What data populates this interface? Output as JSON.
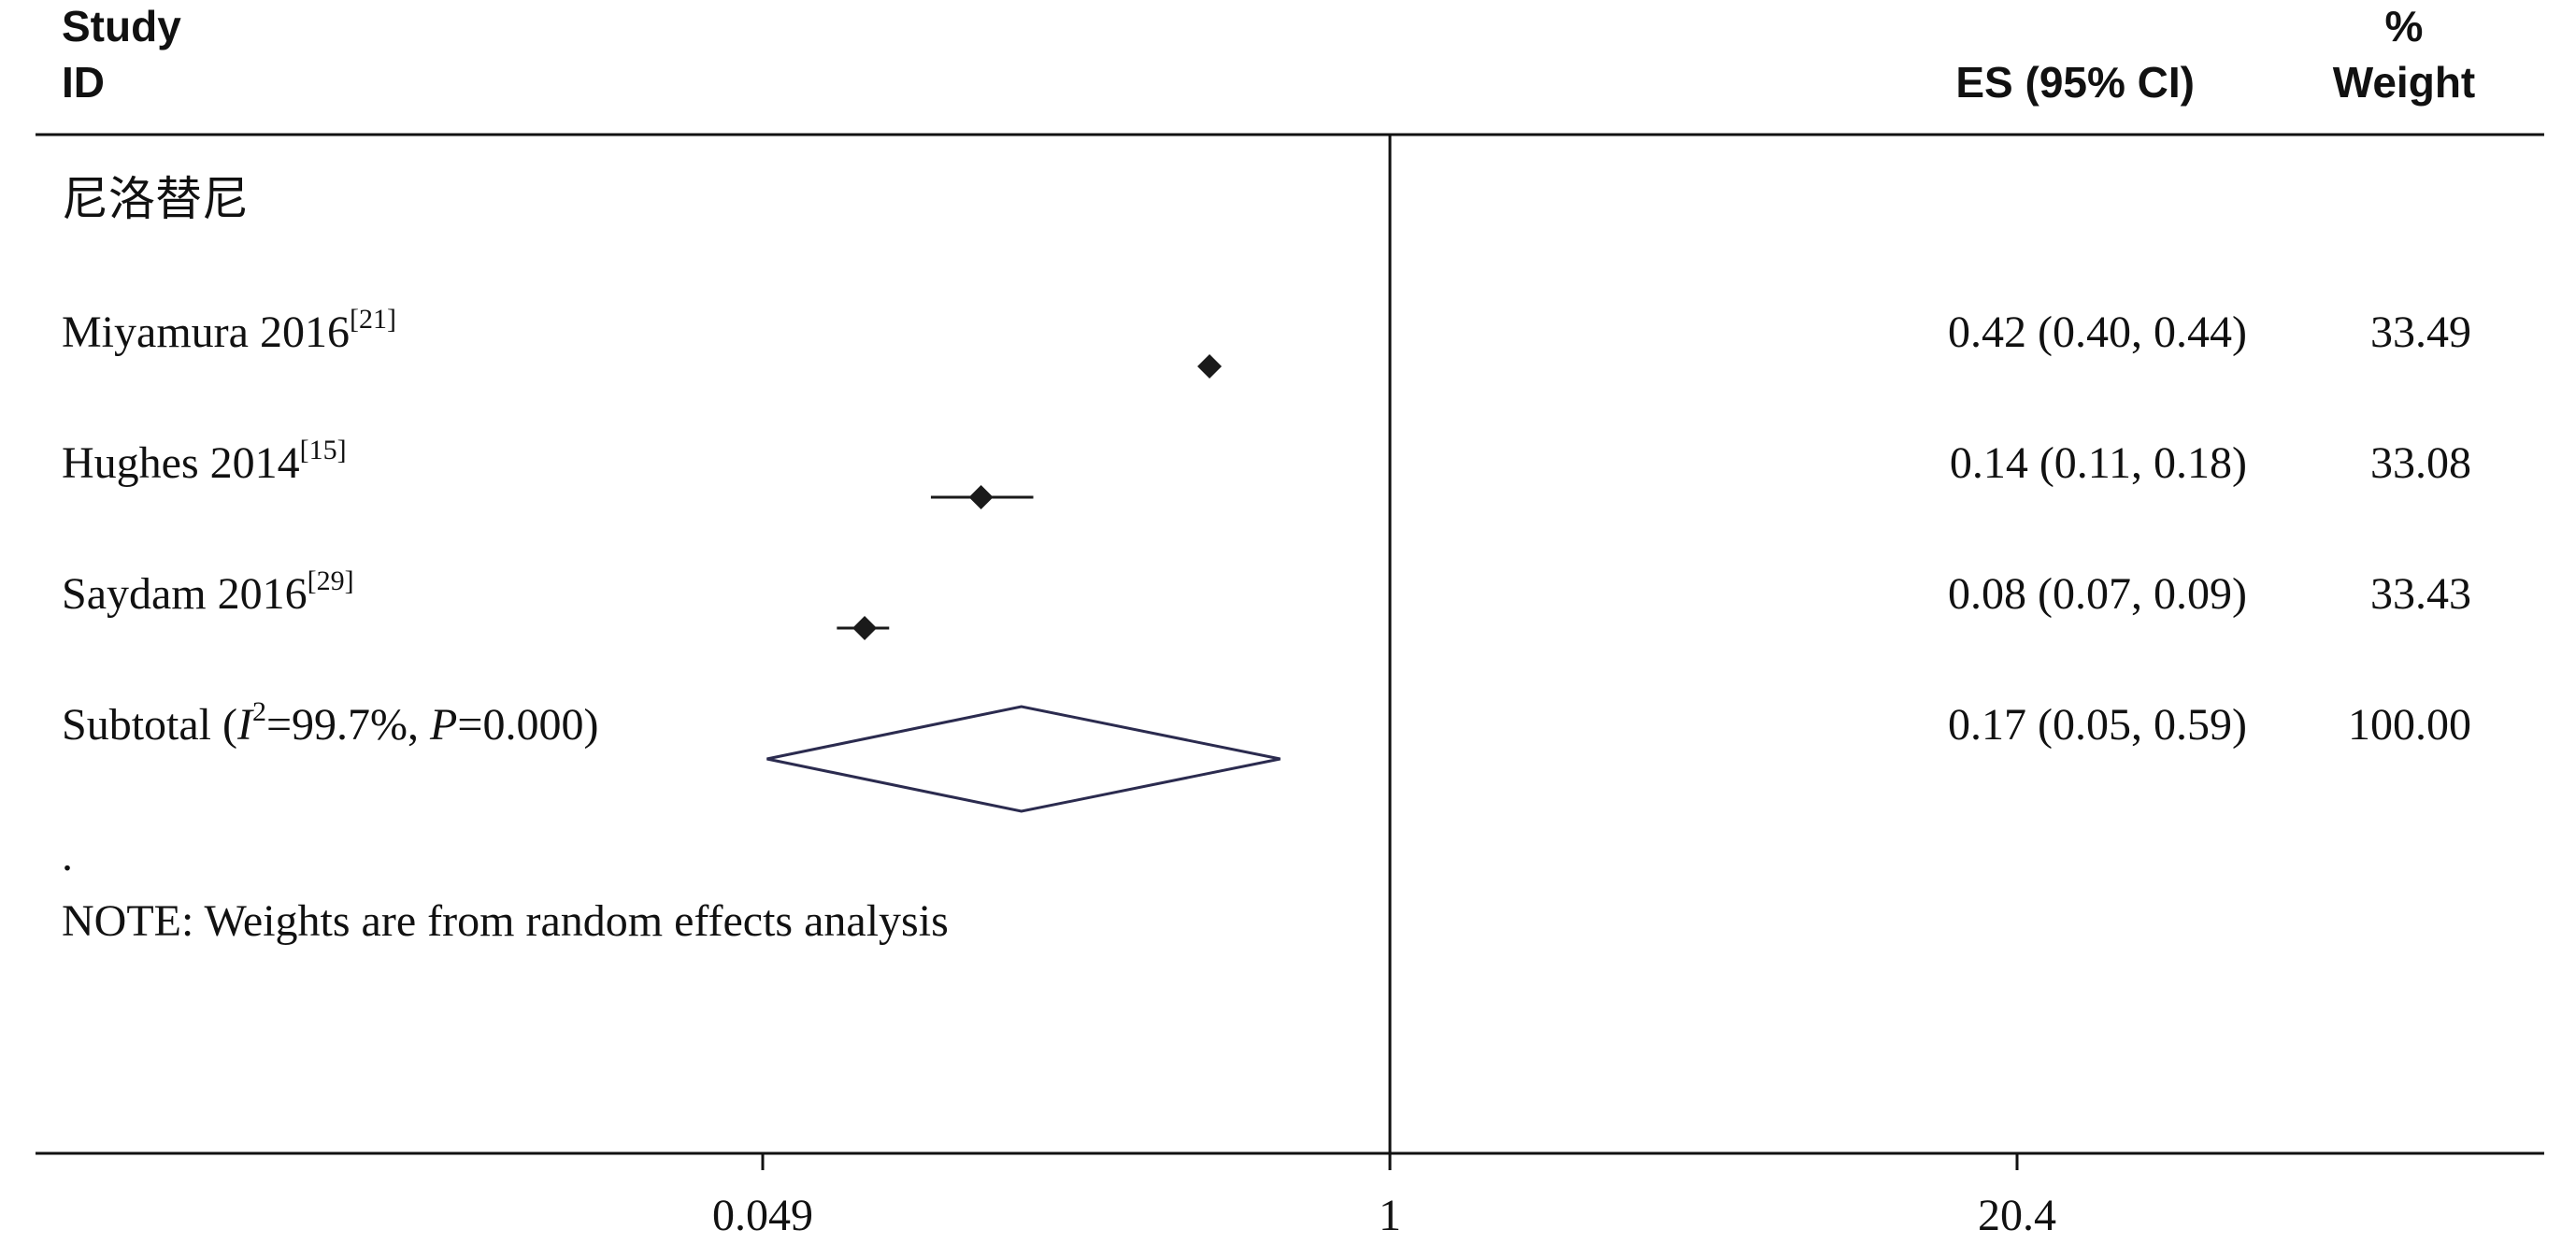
{
  "chart_data": {
    "type": "forest",
    "columns": {
      "study_line1": "Study",
      "study_line2": "ID",
      "es": "ES (95% CI)",
      "weight_line1": "%",
      "weight_line2": "Weight"
    },
    "group_label": "尼洛替尼",
    "studies": [
      {
        "name": "Miyamura 2016",
        "ref": "[21]",
        "es": 0.42,
        "lo": 0.4,
        "hi": 0.44,
        "es_text": "0.42 (0.40, 0.44)",
        "weight_text": "33.49"
      },
      {
        "name": "Hughes 2014",
        "ref": "[15]",
        "es": 0.14,
        "lo": 0.11,
        "hi": 0.18,
        "es_text": "0.14 (0.11, 0.18)",
        "weight_text": "33.08"
      },
      {
        "name": "Saydam 2016",
        "ref": "[29]",
        "es": 0.08,
        "lo": 0.07,
        "hi": 0.09,
        "es_text": "0.08 (0.07, 0.09)",
        "weight_text": "33.43"
      }
    ],
    "subtotal": {
      "label_prefix": "Subtotal  (",
      "i2_symbol": "I",
      "i2_sup": "2",
      "i2_value": "=99.7%, ",
      "p_symbol": "P",
      "p_value": "=0.000)",
      "es": 0.17,
      "lo": 0.05,
      "hi": 0.59,
      "es_text": "0.17 (0.05, 0.59)",
      "weight_text": "100.00"
    },
    "dot": ".",
    "note": "NOTE: Weights are from random effects analysis",
    "x_scale": "log",
    "null_line": 1,
    "x_ticks": [
      {
        "value": 0.049,
        "label": "0.049"
      },
      {
        "value": 1,
        "label": "1"
      },
      {
        "value": 20.4,
        "label": "20.4"
      }
    ],
    "colors": {
      "text": "#111111",
      "marker": "#1a1a1a",
      "diamond_stroke": "#2b2b4f"
    }
  }
}
